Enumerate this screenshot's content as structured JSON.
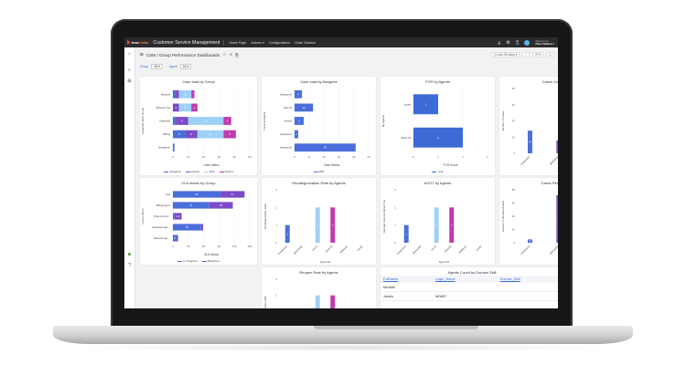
{
  "header": {
    "brand_b": "bmc",
    "brand_h": "helix",
    "app_title": "Customer Service Management",
    "nav": [
      "Home Page",
      "Actions ▾",
      "Configurations",
      "Close Session"
    ],
    "signed_in": "Signed in as",
    "user": "Oliver Williams ▾",
    "icons": [
      "bell-icon",
      "gear-icon",
      "apps-grid-icon",
      "avatar"
    ]
  },
  "breadcrumb": "CSM / Group Performance Dashboards",
  "filters": {
    "group_label": "Group",
    "group_value": "All ▾",
    "agent_label": "Agent",
    "agent_value": "All ▾"
  },
  "toolbar": {
    "time_range": "◷ Last 30 days ▾",
    "search": "⌕",
    "refresh": "⟳ ▾",
    "more": "▭"
  },
  "colors": {
    "assigned": "#4a6fdc",
    "closed": "#7a4cc8",
    "wip": "#9fd0f7",
    "solved": "#c23bae",
    "header_bg": "#2b2b2e"
  },
  "chart_data": [
    {
      "id": "c1",
      "type": "bar",
      "orientation": "horizontal",
      "stacked": true,
      "title": "Case load by Group",
      "xlabel": "Case Status",
      "ylabel": "Assigned Work Group",
      "categories": [
        "Network",
        "Browser Sel",
        "Helpdesk",
        "Billing",
        "Escalation"
      ],
      "xlim": [
        0,
        50
      ],
      "xticks": [
        0,
        10,
        20,
        30,
        40,
        50
      ],
      "series": [
        {
          "name": "Assigned",
          "color": "#4a6fdc",
          "values": [
            2,
            0,
            2,
            8,
            1
          ]
        },
        {
          "name": "Closed",
          "color": "#7a4cc8",
          "values": [
            2,
            4,
            8,
            8,
            0
          ]
        },
        {
          "name": "WIP",
          "color": "#9fd0f7",
          "values": [
            8,
            8,
            23,
            17,
            0
          ]
        },
        {
          "name": "Solved",
          "color": "#c23bae",
          "values": [
            2,
            4,
            5,
            8,
            0
          ]
        }
      ],
      "legend": "bottom"
    },
    {
      "id": "c2",
      "type": "bar",
      "orientation": "horizontal",
      "stacked": true,
      "title": "Case load by Assignee",
      "xlabel": "Case Status",
      "ylabel": "Case Assignee",
      "categories": [
        "Assignee1",
        "Allen B",
        "Amelia",
        "Assignee2",
        "Assigned2"
      ],
      "xlim": [
        0,
        40
      ],
      "xticks": [
        0,
        8,
        16,
        24,
        32,
        40
      ],
      "series": [
        {
          "name": "WIP",
          "color": "#4a6fdc",
          "values": [
            4,
            10,
            5,
            2,
            33
          ]
        }
      ],
      "legend": "bottom"
    },
    {
      "id": "c3",
      "type": "bar",
      "orientation": "horizontal",
      "stacked": false,
      "title": "FCR by Agents",
      "xlabel": "FCR Count",
      "ylabel": "By Agents",
      "categories": [
        "Laura",
        "Oliver W"
      ],
      "xlim": [
        0,
        3
      ],
      "xticks": [
        0,
        1,
        2,
        3
      ],
      "series": [
        {
          "name": "Year",
          "color": "#3d6bd6",
          "values": [
            1,
            2
          ]
        }
      ],
      "legend": "bottom"
    },
    {
      "id": "c4",
      "type": "bar",
      "orientation": "vertical",
      "title": "Cases Created",
      "xlabel": "",
      "ylabel": "Number of Cases",
      "categories": [
        "chewmack",
        "jbenavide",
        "Laura"
      ],
      "ylim": [
        0,
        40
      ],
      "yticks": [
        0,
        10,
        20,
        30,
        40
      ],
      "series": [
        {
          "color": "#4a6fdc",
          "values": [
            14,
            8,
            18
          ],
          "colors": [
            "#4a6fdc",
            "#7a4cc8",
            "#9fd0f7"
          ]
        }
      ]
    },
    {
      "id": "c5",
      "type": "bar",
      "orientation": "horizontal",
      "stacked": true,
      "title": "OLA status by Group",
      "xlabel": "OLA Status",
      "ylabel": "Group Name",
      "categories": [
        "Null",
        "Billing Agent",
        "Finance Part...",
        "Helpdesk Age...",
        "Network Age..."
      ],
      "xlim": [
        0,
        150
      ],
      "xticks": [
        0,
        30,
        60,
        90,
        120,
        150
      ],
      "series": [
        {
          "name": "In Progress",
          "color": "#4a6fdc",
          "values": [
            93,
            71,
            3,
            55,
            8
          ]
        },
        {
          "name": "Breached",
          "color": "#7a4cc8",
          "values": [
            47,
            46,
            14,
            4,
            2
          ]
        }
      ],
      "legend": "bottom"
    },
    {
      "id": "c6",
      "type": "bar",
      "orientation": "vertical",
      "title": "Recategorization Rate by Agents",
      "xlabel": "Agent ID",
      "ylabel": "Recategorization Rate",
      "categories": [
        "chewmack",
        "jbenavide",
        "Laura",
        "OliverW",
        "Jwilliams",
        "rsmith"
      ],
      "ylim": [
        0,
        3
      ],
      "yticks": [
        0,
        1,
        2,
        3
      ],
      "series": [
        {
          "values": [
            1,
            0,
            2,
            2,
            0,
            0
          ],
          "colors": [
            "#4a6fdc",
            "#4a6fdc",
            "#9fd0f7",
            "#c23bae",
            "#4a6fdc",
            "#4a6fdc"
          ]
        }
      ]
    },
    {
      "id": "c7",
      "type": "bar",
      "orientation": "vertical",
      "title": "ACHT by Agents",
      "xlabel": "Agent ID",
      "ylabel": "Average Case Handling Time",
      "categories": [
        "chewmack",
        "jbenavide",
        "Laura",
        "OliverW",
        "Jwilliams",
        "rsmith"
      ],
      "ylim": [
        0,
        3
      ],
      "yticks": [
        0,
        1,
        2,
        3
      ],
      "series": [
        {
          "values": [
            1,
            0,
            2,
            2,
            0,
            0
          ],
          "colors": [
            "#4a6fdc",
            "#4a6fdc",
            "#9fd0f7",
            "#c23bae",
            "#4a6fdc",
            "#4a6fdc"
          ]
        }
      ]
    },
    {
      "id": "c8",
      "type": "bar",
      "orientation": "vertical",
      "title": "Cases Resolved",
      "xlabel": "",
      "ylabel": "Number of Resolved Cases",
      "categories": [
        "chewmack",
        "jbenavide",
        "Laura"
      ],
      "ylim": [
        0,
        80
      ],
      "yticks": [
        0,
        20,
        40,
        60,
        80
      ],
      "series": [
        {
          "values": [
            5,
            72,
            32
          ],
          "colors": [
            "#4a6fdc",
            "#7a4cc8",
            "#9fd0f7"
          ]
        }
      ]
    },
    {
      "id": "c9",
      "type": "bar",
      "orientation": "vertical",
      "title": "Reopen Rate by Agents",
      "xlabel": "",
      "ylabel": "Reopen Rate",
      "categories": [
        "chewmack",
        "jbenavide",
        "Laura",
        "OliverW",
        "Jwilliams",
        "rsmith"
      ],
      "ylim": [
        0,
        3
      ],
      "yticks": [
        0,
        1,
        2,
        3
      ],
      "series": [
        {
          "values": [
            0,
            0,
            2,
            2,
            0,
            0
          ],
          "colors": [
            "#4a6fdc",
            "#4a6fdc",
            "#9fd0f7",
            "#c23bae",
            "#4a6fdc",
            "#4a6fdc"
          ]
        }
      ]
    }
  ],
  "table": {
    "title": "Agents Count by Domain Skill",
    "headers": [
      "FullName",
      "Login_Name",
      "Domain_Skill"
    ],
    "rows": [
      [
        "Michael",
        "",
        ""
      ],
      [
        "James",
        "MD857",
        ""
      ]
    ]
  }
}
